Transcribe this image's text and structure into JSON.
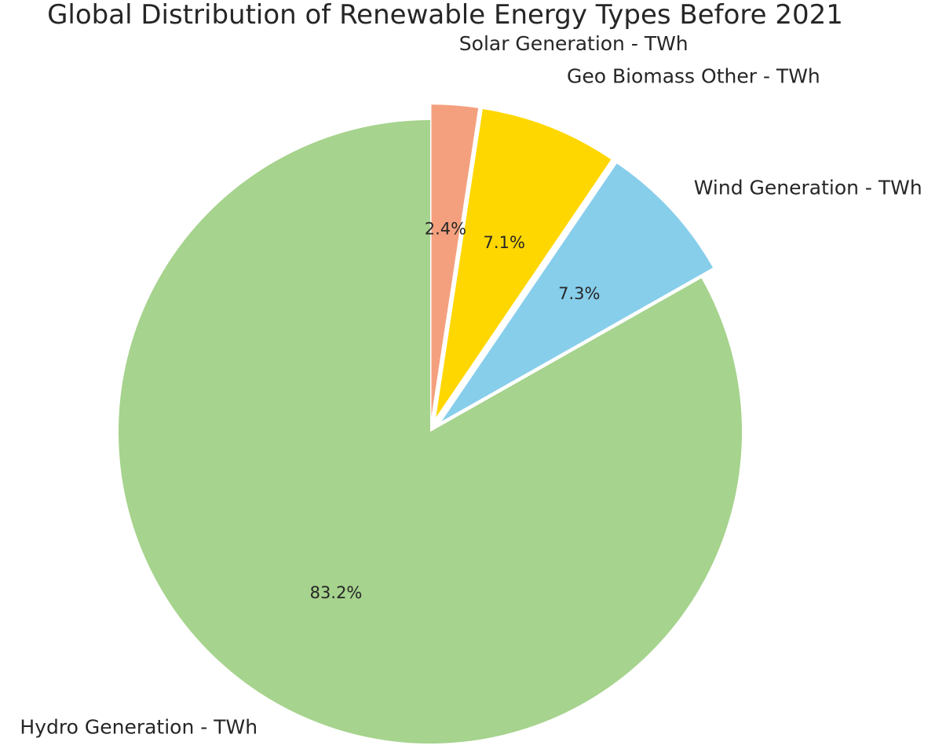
{
  "chart_data": {
    "type": "pie",
    "title": "Global Distribution of Renewable Energy Types Before 2021",
    "slices": [
      {
        "label": "Solar Generation - TWh",
        "pct_text": "2.4%",
        "value": 2.4,
        "color": "#F4A07E",
        "exploded": true
      },
      {
        "label": "Geo Biomass Other - TWh",
        "pct_text": "7.1%",
        "value": 7.1,
        "color": "#FFD700",
        "exploded": true
      },
      {
        "label": "Wind Generation - TWh",
        "pct_text": "7.3%",
        "value": 7.3,
        "color": "#87CEEB",
        "exploded": true
      },
      {
        "label": "Hydro Generation - TWh",
        "pct_text": "83.2%",
        "value": 83.2,
        "color": "#A6D38D",
        "exploded": false
      }
    ],
    "start_angle": "top",
    "direction": "clockwise"
  }
}
